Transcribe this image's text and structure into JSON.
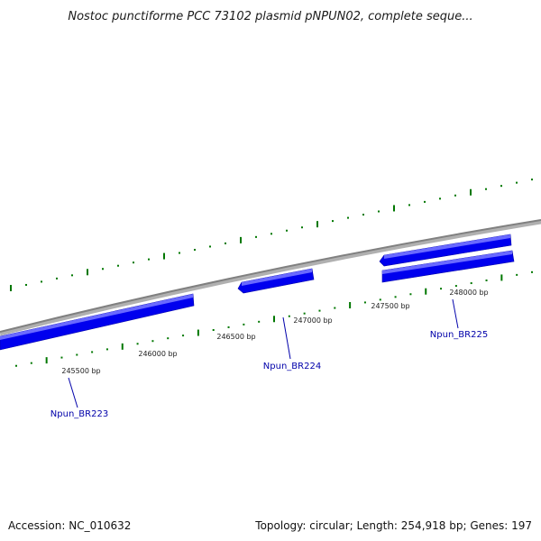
{
  "title": "Nostoc punctiforme PCC 73102 plasmid pNPUN02, complete seque...",
  "footer": {
    "accession": "Accession: NC_010632",
    "summary": "Topology: circular; Length: 254,918 bp; Genes: 197"
  },
  "map": {
    "backbone_color": "#808080",
    "tick_color": "#007700",
    "gene_color": "#0000ee",
    "gene_highlight": "#6a6aff",
    "position_labels": [
      "245500 bp",
      "246000 bp",
      "246500 bp",
      "247000 bp",
      "247500 bp",
      "248000 bp"
    ],
    "genes": [
      {
        "name": "Npun_BR223"
      },
      {
        "name": "Npun_BR224"
      },
      {
        "name": "Npun_BR225"
      }
    ]
  }
}
